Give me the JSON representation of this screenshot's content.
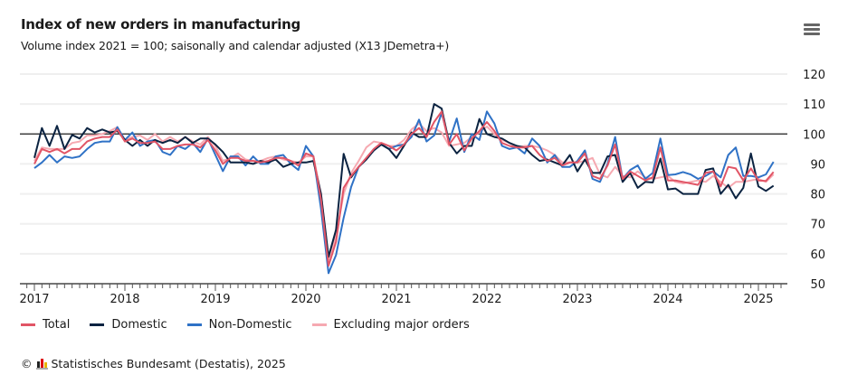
{
  "header": {
    "title": "Index of new orders in manufacturing",
    "subtitle": "Volume index 2021 = 100; saisonally and calendar adjusted (X13 JDemetra+)",
    "menu_icon": "hamburger-menu-icon"
  },
  "footer": {
    "copyright": "©",
    "source": "Statistisches Bundesamt (Destatis), 2025",
    "logo_icon": "destatis-logo-icon"
  },
  "chart_data": {
    "type": "line",
    "title": "Index of new orders in manufacturing",
    "subtitle": "Volume index 2021 = 100; saisonally and calendar adjusted (X13 JDemetra+)",
    "x_axis": {
      "type": "date",
      "frequency": "monthly",
      "tick_labels": [
        "2017",
        "2018",
        "2019",
        "2020",
        "2021",
        "2022",
        "2023",
        "2024",
        "2025"
      ]
    },
    "y_axis": {
      "position": "right",
      "ylim": [
        50,
        120
      ],
      "tick_labels": [
        "50",
        "60",
        "70",
        "80",
        "90",
        "100",
        "110",
        "120"
      ],
      "reference_line": 100
    },
    "grid": "horizontal",
    "legend_placement": "bottom-left",
    "x": [
      "2017-01",
      "2017-02",
      "2017-03",
      "2017-04",
      "2017-05",
      "2017-06",
      "2017-07",
      "2017-08",
      "2017-09",
      "2017-10",
      "2017-11",
      "2017-12",
      "2018-01",
      "2018-02",
      "2018-03",
      "2018-04",
      "2018-05",
      "2018-06",
      "2018-07",
      "2018-08",
      "2018-09",
      "2018-10",
      "2018-11",
      "2018-12",
      "2019-01",
      "2019-02",
      "2019-03",
      "2019-04",
      "2019-05",
      "2019-06",
      "2019-07",
      "2019-08",
      "2019-09",
      "2019-10",
      "2019-11",
      "2019-12",
      "2020-01",
      "2020-02",
      "2020-03",
      "2020-04",
      "2020-05",
      "2020-06",
      "2020-07",
      "2020-08",
      "2020-09",
      "2020-10",
      "2020-11",
      "2020-12",
      "2021-01",
      "2021-02",
      "2021-03",
      "2021-04",
      "2021-05",
      "2021-06",
      "2021-07",
      "2021-08",
      "2021-09",
      "2021-10",
      "2021-11",
      "2021-12",
      "2022-01",
      "2022-02",
      "2022-03",
      "2022-04",
      "2022-05",
      "2022-06",
      "2022-07",
      "2022-08",
      "2022-09",
      "2022-10",
      "2022-11",
      "2022-12",
      "2023-01",
      "2023-02",
      "2023-03",
      "2023-04",
      "2023-05",
      "2023-06",
      "2023-07",
      "2023-08",
      "2023-09",
      "2023-10",
      "2023-11",
      "2023-12",
      "2024-01",
      "2024-02",
      "2024-03",
      "2024-04",
      "2024-05",
      "2024-06",
      "2024-07",
      "2024-08",
      "2024-09",
      "2024-10",
      "2024-11",
      "2024-12",
      "2025-01",
      "2025-02",
      "2025-03"
    ],
    "series": [
      {
        "name": "Total",
        "color": "#e15566",
        "values": [
          90,
          95,
          94,
          95,
          93.5,
          95,
          95,
          97.5,
          98.5,
          99,
          99,
          101.5,
          97.5,
          98.5,
          97,
          97,
          97.5,
          95,
          95,
          96,
          96.5,
          96.5,
          95.5,
          98,
          94.5,
          90,
          92,
          92,
          91,
          91,
          90.5,
          91,
          92,
          92,
          91,
          89.5,
          93.5,
          92.5,
          78,
          56,
          64,
          82,
          86,
          89,
          92,
          95,
          97,
          96,
          94.5,
          96.5,
          100,
          102,
          99,
          104,
          107.5,
          96.5,
          100,
          94.5,
          98.5,
          101,
          104,
          101,
          97,
          96,
          95.5,
          95.5,
          96,
          93,
          91,
          92,
          89.5,
          90.5,
          90.5,
          93.5,
          86,
          85,
          89.5,
          96.5,
          85,
          87.5,
          86,
          84.5,
          85.5,
          95.5,
          84.5,
          84.5,
          84,
          83.5,
          83,
          87,
          87.5,
          82.5,
          89,
          88.5,
          84.5,
          88.5,
          84.5,
          84.3,
          87.3
        ]
      },
      {
        "name": "Domestic",
        "color": "#0b2341",
        "values": [
          92,
          102,
          96,
          102.7,
          95,
          99.7,
          98.5,
          102,
          100.5,
          101.5,
          100.5,
          101,
          98,
          96,
          98,
          96,
          98,
          97,
          98,
          97,
          99,
          97,
          98.5,
          98.5,
          96.5,
          94,
          90.5,
          90.5,
          90.5,
          90,
          91,
          90.5,
          91.5,
          89,
          90,
          90.5,
          90.5,
          91,
          80,
          59,
          68,
          93.4,
          85.5,
          89,
          91.5,
          94.5,
          96.5,
          95,
          92,
          96,
          100.5,
          99,
          99,
          110,
          108.5,
          97,
          93.5,
          96,
          96,
          105,
          100,
          99,
          98.5,
          97,
          96,
          95.5,
          93,
          91,
          91.5,
          90.5,
          89.5,
          93,
          87.5,
          91.5,
          87,
          87,
          92.5,
          93,
          84,
          87,
          82,
          84,
          83.8,
          91.8,
          81.5,
          81.8,
          80,
          80,
          80,
          88,
          88.5,
          80,
          83,
          78.5,
          82,
          93.5,
          82.5,
          81,
          82.7
        ]
      },
      {
        "name": "Non-Domestic",
        "color": "#2f72c6",
        "values": [
          88.6,
          90.5,
          93,
          90.5,
          92.5,
          92,
          92.5,
          95,
          97,
          97.5,
          97.5,
          102.3,
          98,
          100.5,
          96,
          97.5,
          98,
          94,
          93,
          96,
          95,
          97,
          94,
          98.5,
          93,
          87.6,
          92.5,
          92.5,
          89.5,
          92.5,
          90,
          90,
          92.5,
          93,
          90,
          88,
          96,
          92.5,
          75,
          53.5,
          59.6,
          72,
          82.3,
          89,
          91.5,
          94.5,
          96.5,
          95,
          96,
          96.5,
          99,
          104.8,
          97.5,
          99.5,
          107,
          97.5,
          105.2,
          94,
          100,
          98,
          107.5,
          103.5,
          96,
          95,
          95.5,
          93.5,
          98.5,
          96,
          90.5,
          93,
          89,
          89,
          91,
          94.5,
          85,
          84,
          90,
          99,
          85,
          88,
          89.5,
          85,
          87,
          98.5,
          86.3,
          86.5,
          87.3,
          86.5,
          85,
          86,
          87.5,
          85.5,
          93,
          95.5,
          86,
          86,
          85.5,
          86.5,
          90.7
        ]
      },
      {
        "name": "Excluding major orders",
        "color": "#f6a9b1",
        "values": [
          91,
          95.5,
          95,
          95,
          95,
          97,
          97.5,
          99.5,
          99.5,
          100,
          101,
          102.3,
          98,
          99,
          99.5,
          98,
          100,
          97.5,
          99,
          97.5,
          99,
          97.5,
          96.5,
          99,
          96,
          91,
          92,
          93.5,
          91.5,
          91,
          91,
          92,
          92.5,
          91.5,
          91,
          90.5,
          92.5,
          92.5,
          80,
          58,
          66,
          80,
          87,
          91,
          95.5,
          97.5,
          97,
          96,
          96,
          98,
          101.5,
          103.5,
          101,
          102,
          100.5,
          96,
          96.5,
          97,
          99,
          100.5,
          102.5,
          100,
          98,
          97,
          95.5,
          96,
          96,
          95.5,
          94.5,
          93,
          90.5,
          90.5,
          90.5,
          91,
          92,
          86.5,
          85.5,
          89,
          86,
          85.5,
          87.5,
          85.5,
          85,
          85.5,
          86,
          84,
          83.5,
          84,
          84.5,
          84,
          86,
          84,
          82,
          84,
          84,
          84.5,
          85,
          84,
          86.5
        ]
      }
    ]
  }
}
